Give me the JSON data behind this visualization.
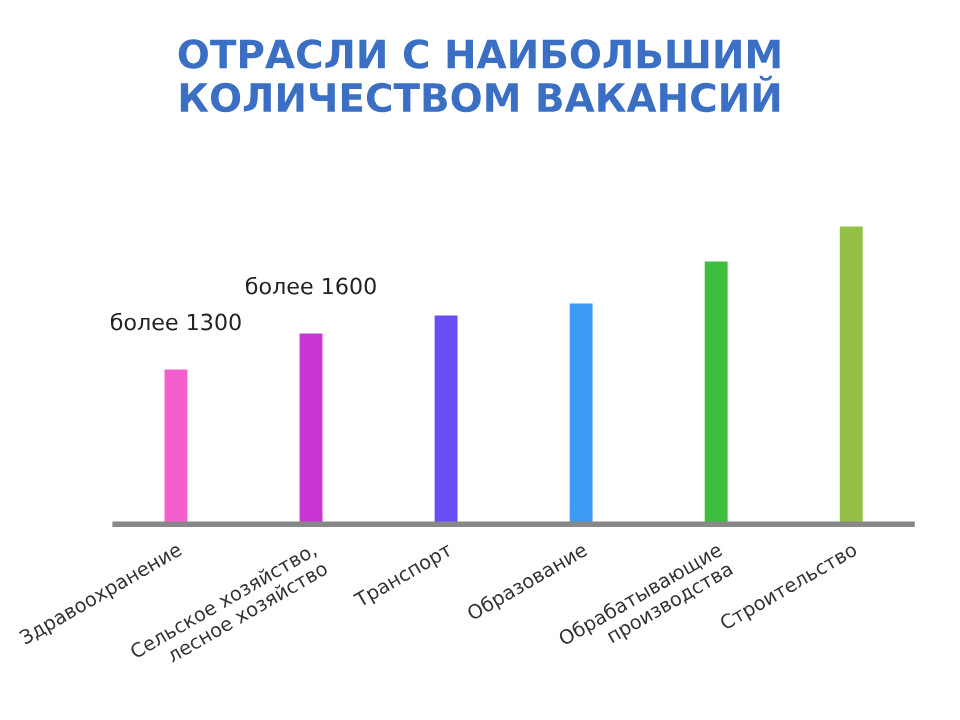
{
  "chart_data": {
    "type": "bar",
    "title": "ОТРАСЛИ С НАИБОЛЬШИМ\nКОЛИЧЕСТВОМ ВАКАНСИЙ",
    "categories": [
      "Здравоохранение",
      "Сельское хозяйство,\nлесное хозяйство",
      "Транспорт",
      "Образование",
      "Обрабатывающие\nпроизводства",
      "Строительство"
    ],
    "values": [
      1300,
      1600,
      1750,
      1850,
      2200,
      2490
    ],
    "value_labels": [
      "более 1300",
      "более 1600",
      null,
      null,
      null,
      null
    ],
    "colors": [
      "#f35fcf",
      "#c837d6",
      "#6a4cf5",
      "#3d9af5",
      "#3cbf3c",
      "#94c045"
    ],
    "grid": false,
    "legend": false
  }
}
